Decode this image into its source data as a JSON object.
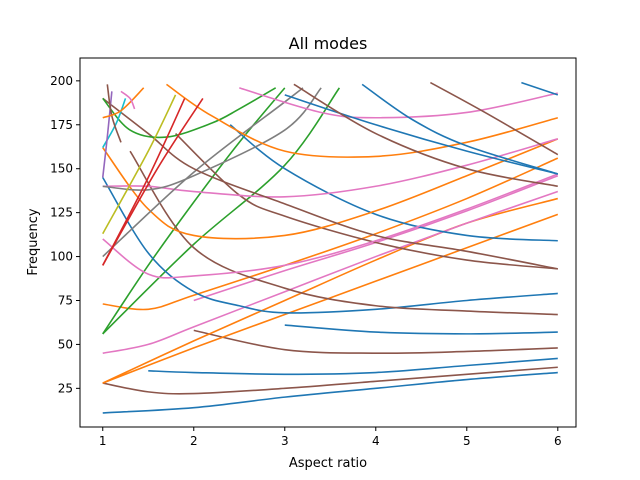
{
  "chart_data": {
    "type": "line",
    "title": "All modes",
    "xlabel": "Aspect ratio",
    "ylabel": "Frequency",
    "xlim": [
      0.75,
      6.2
    ],
    "ylim": [
      3,
      213
    ],
    "xticks": [
      1,
      2,
      3,
      4,
      5,
      6
    ],
    "yticks": [
      25,
      50,
      75,
      100,
      125,
      150,
      175,
      200
    ],
    "grid": false,
    "legend": "none",
    "series": [
      {
        "color": "#1f77b4",
        "points": [
          [
            1,
            11
          ],
          [
            2,
            14
          ],
          [
            3,
            20
          ],
          [
            4,
            25
          ],
          [
            5,
            30
          ],
          [
            6,
            34
          ]
        ]
      },
      {
        "color": "#8c564b",
        "points": [
          [
            1,
            28
          ],
          [
            1.5,
            23
          ],
          [
            2,
            22
          ],
          [
            3,
            25
          ],
          [
            4,
            29
          ],
          [
            5,
            33
          ],
          [
            6,
            37
          ]
        ]
      },
      {
        "color": "#1f77b4",
        "points": [
          [
            1.5,
            35
          ],
          [
            2,
            34
          ],
          [
            3,
            33
          ],
          [
            4,
            34
          ],
          [
            5,
            38
          ],
          [
            6,
            42
          ]
        ]
      },
      {
        "color": "#8c564b",
        "points": [
          [
            2,
            58
          ],
          [
            3,
            47
          ],
          [
            4,
            45
          ],
          [
            5,
            46
          ],
          [
            6,
            48
          ]
        ]
      },
      {
        "color": "#1f77b4",
        "points": [
          [
            3,
            61
          ],
          [
            4,
            57
          ],
          [
            5,
            56
          ],
          [
            6,
            57
          ]
        ]
      },
      {
        "color": "#ff7f0e",
        "points": [
          [
            1,
            28
          ],
          [
            2,
            48
          ],
          [
            3,
            67
          ],
          [
            4,
            86
          ],
          [
            5,
            105
          ],
          [
            6,
            124
          ]
        ]
      },
      {
        "color": "#ff7f0e",
        "points": [
          [
            1,
            28
          ],
          [
            2,
            52
          ],
          [
            3,
            75
          ],
          [
            4,
            98
          ],
          [
            5,
            119
          ],
          [
            6,
            133
          ]
        ]
      },
      {
        "color": "#e377c2",
        "points": [
          [
            1,
            45
          ],
          [
            1.5,
            50
          ],
          [
            2,
            60
          ],
          [
            3,
            80
          ],
          [
            4,
            100
          ],
          [
            5,
            119
          ],
          [
            6,
            137
          ]
        ]
      },
      {
        "color": "#e377c2",
        "points": [
          [
            2,
            75
          ],
          [
            3,
            92
          ],
          [
            4,
            108
          ],
          [
            5,
            126
          ],
          [
            6,
            146
          ]
        ]
      },
      {
        "color": "#ff7f0e",
        "points": [
          [
            1,
            73
          ],
          [
            1.5,
            70
          ],
          [
            2,
            78
          ],
          [
            3,
            95
          ],
          [
            4,
            113
          ],
          [
            5,
            133
          ],
          [
            6,
            156
          ]
        ]
      },
      {
        "color": "#2ca02c",
        "points": [
          [
            1,
            56
          ],
          [
            1.5,
            95
          ],
          [
            2,
            131
          ],
          [
            2.5,
            165
          ],
          [
            3,
            196
          ]
        ]
      },
      {
        "color": "#2ca02c",
        "points": [
          [
            1,
            56
          ],
          [
            2,
            107
          ],
          [
            3,
            152
          ],
          [
            3.6,
            196
          ]
        ]
      },
      {
        "color": "#1f77b4",
        "points": [
          [
            1,
            145
          ],
          [
            1.5,
            102
          ],
          [
            2,
            80
          ],
          [
            2.5,
            72
          ],
          [
            3,
            68
          ],
          [
            4,
            70
          ],
          [
            5,
            75
          ],
          [
            6,
            79
          ]
        ]
      },
      {
        "color": "#8c564b",
        "points": [
          [
            1.3,
            160
          ],
          [
            2,
            105
          ],
          [
            3,
            82
          ],
          [
            4,
            72
          ],
          [
            5,
            69
          ],
          [
            6,
            67
          ]
        ]
      },
      {
        "color": "#8c564b",
        "points": [
          [
            1.8,
            170
          ],
          [
            2.5,
            135
          ],
          [
            3,
            123
          ],
          [
            4,
            108
          ],
          [
            5,
            98
          ],
          [
            6,
            93
          ]
        ]
      },
      {
        "color": "#1f77b4",
        "points": [
          [
            2.4,
            175
          ],
          [
            3,
            150
          ],
          [
            4,
            124
          ],
          [
            5,
            112
          ],
          [
            6,
            109
          ]
        ]
      },
      {
        "color": "#e377c2",
        "points": [
          [
            1,
            110
          ],
          [
            1.5,
            90
          ],
          [
            2,
            89
          ],
          [
            3,
            95
          ],
          [
            4,
            109
          ],
          [
            5,
            127
          ],
          [
            6,
            147
          ]
        ]
      },
      {
        "color": "#ff7f0e",
        "points": [
          [
            1,
            162
          ],
          [
            1.5,
            127
          ],
          [
            2,
            112
          ],
          [
            3,
            112
          ],
          [
            4,
            126
          ],
          [
            5,
            146
          ],
          [
            6,
            167
          ]
        ]
      },
      {
        "color": "#e377c2",
        "points": [
          [
            1,
            140
          ],
          [
            1.5,
            140
          ],
          [
            2,
            137
          ],
          [
            3,
            134
          ],
          [
            4,
            140
          ],
          [
            5,
            152
          ],
          [
            6,
            167
          ]
        ]
      },
      {
        "color": "#7f7f7f",
        "points": [
          [
            1,
            140
          ],
          [
            1.5,
            138
          ],
          [
            2,
            146
          ],
          [
            3,
            172
          ],
          [
            3.4,
            196
          ]
        ]
      },
      {
        "color": "#7f7f7f",
        "points": [
          [
            1,
            100
          ],
          [
            2,
            148
          ],
          [
            3,
            188
          ],
          [
            3.2,
            196
          ]
        ]
      },
      {
        "color": "#8c564b",
        "points": [
          [
            1,
            190
          ],
          [
            1.5,
            170
          ],
          [
            2,
            150
          ],
          [
            3,
            130
          ],
          [
            4,
            112
          ],
          [
            5,
            103
          ],
          [
            6,
            93
          ]
        ]
      },
      {
        "color": "#2ca02c",
        "points": [
          [
            1,
            190
          ],
          [
            1.3,
            172
          ],
          [
            1.7,
            168
          ],
          [
            2.2,
            176
          ],
          [
            2.5,
            184
          ],
          [
            2.9,
            196
          ]
        ]
      },
      {
        "color": "#ff7f0e",
        "points": [
          [
            1.7,
            198
          ],
          [
            2.2,
            180
          ],
          [
            3,
            160
          ],
          [
            4,
            157
          ],
          [
            5,
            165
          ],
          [
            6,
            179
          ]
        ]
      },
      {
        "color": "#e377c2",
        "points": [
          [
            2.5,
            196
          ],
          [
            3.4,
            182
          ],
          [
            4,
            179
          ],
          [
            5,
            182
          ],
          [
            6,
            193
          ]
        ]
      },
      {
        "color": "#1f77b4",
        "points": [
          [
            3,
            192
          ],
          [
            4,
            175
          ],
          [
            5,
            160
          ],
          [
            6,
            147
          ]
        ]
      },
      {
        "color": "#8c564b",
        "points": [
          [
            3.1,
            198
          ],
          [
            4,
            170
          ],
          [
            5,
            150
          ],
          [
            6,
            140
          ]
        ]
      },
      {
        "color": "#8c564b",
        "points": [
          [
            4.6,
            199
          ],
          [
            5.2,
            182
          ],
          [
            6,
            158
          ]
        ]
      },
      {
        "color": "#1f77b4",
        "points": [
          [
            3.85,
            198
          ],
          [
            4.4,
            178
          ],
          [
            5,
            163
          ],
          [
            6,
            147
          ]
        ]
      },
      {
        "color": "#1f77b4",
        "points": [
          [
            5.6,
            199
          ],
          [
            6,
            192
          ]
        ]
      },
      {
        "color": "#d62728",
        "points": [
          [
            1,
            95
          ],
          [
            1.5,
            145
          ],
          [
            1.9,
            190
          ]
        ]
      },
      {
        "color": "#d62728",
        "points": [
          [
            1,
            95
          ],
          [
            1.6,
            150
          ],
          [
            2.1,
            190
          ]
        ]
      },
      {
        "color": "#bcbd22",
        "points": [
          [
            1,
            113
          ],
          [
            1.5,
            160
          ],
          [
            1.8,
            192
          ]
        ]
      },
      {
        "color": "#17becf",
        "points": [
          [
            1,
            162
          ],
          [
            1.15,
            176
          ],
          [
            1.25,
            190
          ]
        ]
      },
      {
        "color": "#9467bd",
        "points": [
          [
            1,
            145
          ],
          [
            1.05,
            168
          ],
          [
            1.1,
            194
          ]
        ]
      },
      {
        "color": "#8c564b",
        "points": [
          [
            1.05,
            198
          ],
          [
            1.1,
            180
          ],
          [
            1.2,
            165
          ]
        ]
      },
      {
        "color": "#ff7f0e",
        "points": [
          [
            1.0,
            179
          ],
          [
            1.2,
            183
          ],
          [
            1.45,
            196
          ]
        ]
      },
      {
        "color": "#e377c2",
        "points": [
          [
            1.2,
            194
          ],
          [
            1.3,
            190
          ],
          [
            1.35,
            184
          ]
        ]
      }
    ]
  }
}
